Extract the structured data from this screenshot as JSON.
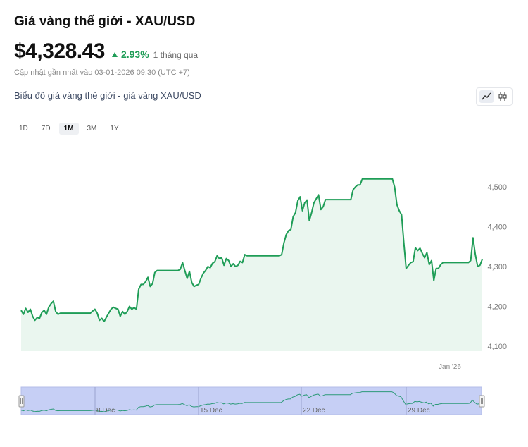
{
  "header": {
    "title": "Giá vàng thế giới - XAU/USD",
    "price": "$4,328.43",
    "change_pct": "2.93%",
    "change_period": "1 tháng qua",
    "updated": "Cập nhật gần nhất vào 03-01-2026 09:30 (UTC +7)"
  },
  "chart_section": {
    "subtitle": "Biểu đồ giá vàng thế giới - giá vàng XAU/USD",
    "ranges": [
      "1D",
      "7D",
      "1M",
      "3M",
      "1Y"
    ],
    "active_range": "1M",
    "toggle_icons": [
      "line-chart-icon",
      "candlestick-icon"
    ]
  },
  "colors": {
    "line": "#1f9d57",
    "fill": "#eaf6ef",
    "navigator_fill": "#c6cff5",
    "up": "#1f9d57"
  },
  "chart_data": {
    "type": "area",
    "x_tick_labels": [
      "Jan '26"
    ],
    "y_ticks": [
      4100,
      4200,
      4300,
      4400,
      4500
    ],
    "ylim": [
      4100,
      4560
    ],
    "grid": false,
    "navigator_labels": [
      "8 Dec",
      "15 Dec",
      "22 Dec",
      "29 Dec"
    ],
    "series": [
      {
        "values": [
          4190,
          4180,
          4195,
          4185,
          4193,
          4175,
          4165,
          4172,
          4170,
          4185,
          4190,
          4180,
          4198,
          4207,
          4213,
          4187,
          4180,
          4183,
          4183,
          4183,
          4183,
          4183,
          4183,
          4183,
          4183,
          4183,
          4183,
          4183,
          4183,
          4183,
          4183,
          4188,
          4193,
          4183,
          4165,
          4170,
          4162,
          4173,
          4183,
          4193,
          4198,
          4195,
          4193,
          4175,
          4187,
          4180,
          4187,
          4200,
          4193,
          4197,
          4193,
          4243,
          4255,
          4255,
          4262,
          4273,
          4250,
          4257,
          4285,
          4290,
          4290,
          4290,
          4290,
          4290,
          4290,
          4290,
          4290,
          4290,
          4290,
          4293,
          4310,
          4290,
          4270,
          4288,
          4260,
          4250,
          4253,
          4255,
          4270,
          4283,
          4290,
          4300,
          4297,
          4308,
          4312,
          4327,
          4320,
          4322,
          4303,
          4320,
          4315,
          4300,
          4307,
          4300,
          4303,
          4313,
          4310,
          4330,
          4327,
          4327,
          4327,
          4327,
          4327,
          4327,
          4327,
          4327,
          4327,
          4327,
          4327,
          4327,
          4327,
          4327,
          4327,
          4330,
          4360,
          4380,
          4390,
          4393,
          4425,
          4435,
          4465,
          4475,
          4440,
          4460,
          4467,
          4415,
          4435,
          4460,
          4470,
          4480,
          4443,
          4450,
          4468,
          4468,
          4468,
          4468,
          4468,
          4468,
          4468,
          4468,
          4468,
          4468,
          4468,
          4468,
          4493,
          4500,
          4505,
          4505,
          4520,
          4520,
          4520,
          4520,
          4520,
          4520,
          4520,
          4520,
          4520,
          4520,
          4520,
          4520,
          4520,
          4520,
          4500,
          4455,
          4440,
          4430,
          4360,
          4295,
          4303,
          4310,
          4312,
          4347,
          4340,
          4346,
          4333,
          4322,
          4335,
          4305,
          4315,
          4265,
          4295,
          4295,
          4305,
          4310,
          4310,
          4310,
          4310,
          4310,
          4310,
          4310,
          4310,
          4310,
          4310,
          4310,
          4310,
          4315,
          4372,
          4330,
          4300,
          4303,
          4318
        ]
      }
    ]
  }
}
